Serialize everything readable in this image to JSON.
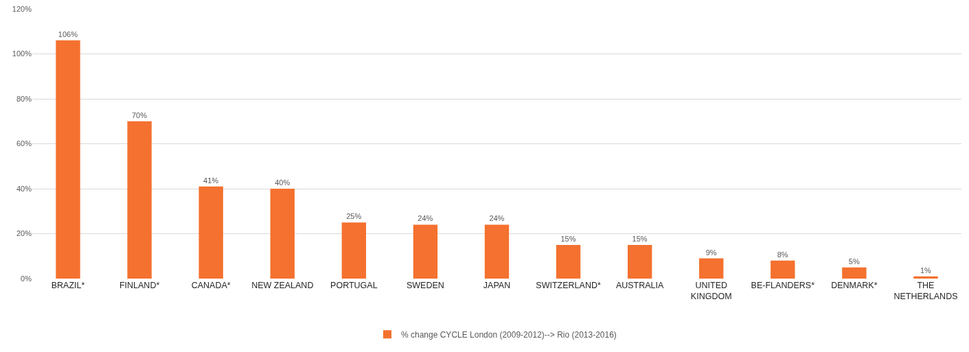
{
  "chart_data": {
    "type": "bar",
    "categories": [
      "BRAZIL*",
      "FINLAND*",
      "CANADA*",
      "NEW ZEALAND",
      "PORTUGAL",
      "SWEDEN",
      "JAPAN",
      "SWITZERLAND*",
      "AUSTRALIA",
      "UNITED KINGDOM",
      "BE-FLANDERS*",
      "DENMARK*",
      "THE NETHERLANDS"
    ],
    "series": [
      {
        "name": "% change CYCLE London (2009-2012)--> Rio (2013-2016)",
        "color": "#f4712f",
        "values": [
          106,
          70,
          41,
          40,
          25,
          24,
          24,
          15,
          15,
          9,
          8,
          5,
          1
        ],
        "value_labels": [
          "106%",
          "70%",
          "41%",
          "40%",
          "25%",
          "24%",
          "24%",
          "15%",
          "15%",
          "9%",
          "8%",
          "5%",
          "1%"
        ]
      }
    ],
    "ylim": [
      0,
      120
    ],
    "yticks": [
      {
        "value": 0,
        "label": "0%"
      },
      {
        "value": 20,
        "label": "20%"
      },
      {
        "value": 40,
        "label": "40%"
      },
      {
        "value": 60,
        "label": "60%"
      },
      {
        "value": 80,
        "label": "80%"
      },
      {
        "value": 100,
        "label": "100%"
      },
      {
        "value": 120,
        "label": "120%"
      }
    ],
    "grid": "y",
    "legend": "bottom"
  }
}
